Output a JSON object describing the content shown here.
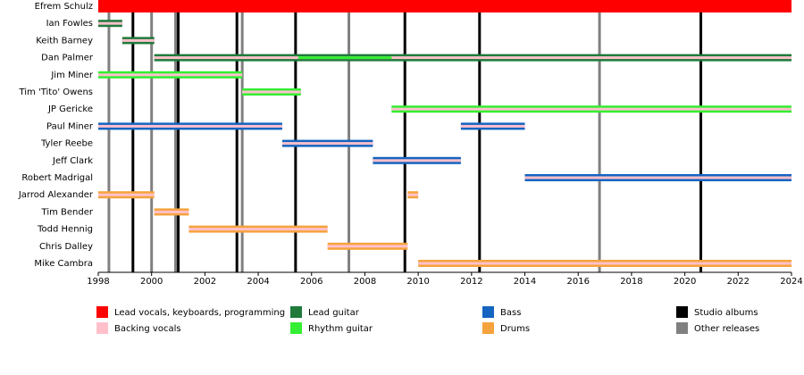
{
  "chart_data": {
    "type": "timeline",
    "xlim": [
      1998,
      2024
    ],
    "xticks": [
      1998,
      2000,
      2002,
      2004,
      2006,
      2008,
      2010,
      2012,
      2014,
      2016,
      2018,
      2020,
      2022,
      2024
    ],
    "roles": [
      {
        "name": "Lead vocals, keyboards, programming",
        "color": "#ff0000"
      },
      {
        "name": "Backing vocals",
        "color": "#ffc0cb"
      },
      {
        "name": "Lead guitar",
        "color": "#1f7a3c"
      },
      {
        "name": "Rhythm guitar",
        "color": "#33ee33"
      },
      {
        "name": "Bass",
        "color": "#1565c0"
      },
      {
        "name": "Drums",
        "color": "#f5a33c"
      }
    ],
    "events": [
      {
        "name": "Studio albums",
        "color": "#000000",
        "values": [
          1999.3,
          2001.0,
          2003.2,
          2005.4,
          2009.5,
          2012.3,
          2020.6
        ]
      },
      {
        "name": "Other releases",
        "color": "#808080",
        "values": [
          1998.4,
          2000.0,
          2000.9,
          2003.4,
          2007.4,
          2016.8
        ]
      }
    ],
    "members": [
      {
        "name": "Efrem Schulz",
        "spans": [
          {
            "role": 0,
            "start": 1998,
            "end": 2024
          }
        ]
      },
      {
        "name": "Ian Fowles",
        "spans": [
          {
            "role": 2,
            "start": 1998,
            "end": 1998.9
          },
          {
            "role": 1,
            "start": 1998,
            "end": 1998.9
          }
        ]
      },
      {
        "name": "Keith Barney",
        "spans": [
          {
            "role": 2,
            "start": 1998.9,
            "end": 2000.1
          },
          {
            "role": 1,
            "start": 1998.9,
            "end": 2000.1
          }
        ]
      },
      {
        "name": "Dan Palmer",
        "spans": [
          {
            "role": 2,
            "start": 2000.1,
            "end": 2024
          },
          {
            "role": 1,
            "start": 2000.1,
            "end": 2024
          },
          {
            "role": 3,
            "start": 2005.5,
            "end": 2009.0
          }
        ]
      },
      {
        "name": "Jim Miner",
        "spans": [
          {
            "role": 3,
            "start": 1998,
            "end": 2003.4
          },
          {
            "role": 1,
            "start": 1998,
            "end": 2003.4
          }
        ]
      },
      {
        "name": "Tim 'Tito' Owens",
        "spans": [
          {
            "role": 3,
            "start": 2003.4,
            "end": 2005.6
          },
          {
            "role": 1,
            "start": 2003.4,
            "end": 2005.6
          }
        ]
      },
      {
        "name": "JP Gericke",
        "spans": [
          {
            "role": 3,
            "start": 2009.0,
            "end": 2024
          },
          {
            "role": 1,
            "start": 2009.0,
            "end": 2024
          }
        ]
      },
      {
        "name": "Paul Miner",
        "spans": [
          {
            "role": 4,
            "start": 1998,
            "end": 2004.9
          },
          {
            "role": 1,
            "start": 1998,
            "end": 2004.9
          },
          {
            "role": 4,
            "start": 2011.6,
            "end": 2014.0
          },
          {
            "role": 1,
            "start": 2011.6,
            "end": 2014.0
          }
        ]
      },
      {
        "name": "Tyler Reebe",
        "spans": [
          {
            "role": 4,
            "start": 2004.9,
            "end": 2008.3
          },
          {
            "role": 1,
            "start": 2004.9,
            "end": 2008.3
          }
        ]
      },
      {
        "name": "Jeff Clark",
        "spans": [
          {
            "role": 4,
            "start": 2008.3,
            "end": 2011.6
          },
          {
            "role": 1,
            "start": 2008.3,
            "end": 2011.6
          }
        ]
      },
      {
        "name": "Robert Madrigal",
        "spans": [
          {
            "role": 4,
            "start": 2014.0,
            "end": 2024
          },
          {
            "role": 1,
            "start": 2014.0,
            "end": 2024
          }
        ]
      },
      {
        "name": "Jarrod Alexander",
        "spans": [
          {
            "role": 5,
            "start": 1998,
            "end": 2000.1
          },
          {
            "role": 1,
            "start": 1998,
            "end": 2000.1
          },
          {
            "role": 5,
            "start": 2009.6,
            "end": 2010.0
          },
          {
            "role": 1,
            "start": 2009.6,
            "end": 2010.0
          }
        ]
      },
      {
        "name": "Tim Bender",
        "spans": [
          {
            "role": 5,
            "start": 2000.1,
            "end": 2001.4
          },
          {
            "role": 1,
            "start": 2000.1,
            "end": 2001.4
          }
        ]
      },
      {
        "name": "Todd Hennig",
        "spans": [
          {
            "role": 5,
            "start": 2001.4,
            "end": 2006.6
          },
          {
            "role": 1,
            "start": 2001.4,
            "end": 2006.6
          }
        ]
      },
      {
        "name": "Chris Dalley",
        "spans": [
          {
            "role": 5,
            "start": 2006.6,
            "end": 2009.6
          },
          {
            "role": 1,
            "start": 2006.6,
            "end": 2009.6
          }
        ]
      },
      {
        "name": "Mike Cambra",
        "spans": [
          {
            "role": 5,
            "start": 2010.0,
            "end": 2024
          },
          {
            "role": 1,
            "start": 2010.0,
            "end": 2024
          }
        ]
      }
    ]
  }
}
